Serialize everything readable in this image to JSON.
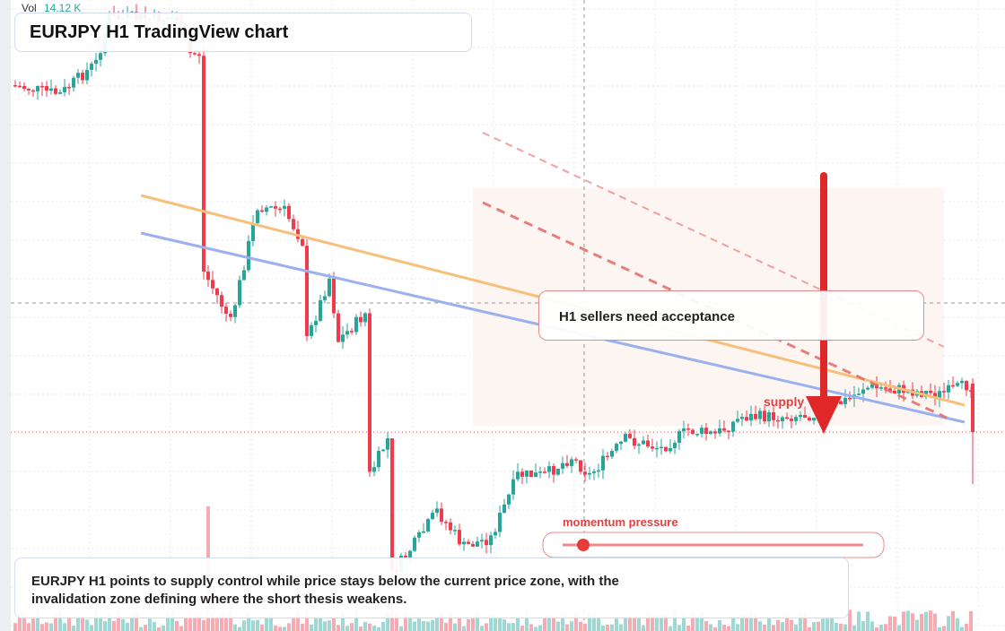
{
  "header": {
    "title": "EURJPY H1 TradingView chart"
  },
  "volume": {
    "label": "Vol",
    "value": "14.12 K"
  },
  "annotations": {
    "callout": "H1 sellers need acceptance",
    "supply_label": "supply",
    "momentum_label": "momentum pressure"
  },
  "summary": "EURJPY H1 points to supply control while price stays below the current price zone, with the invalidation zone defining where the short thesis weakens."
}
